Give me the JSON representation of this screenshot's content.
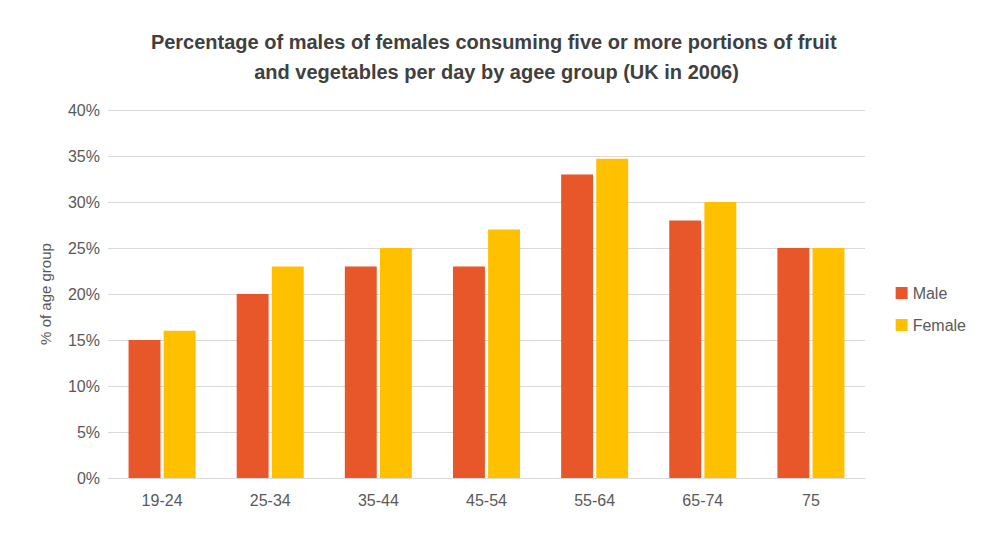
{
  "chart_data": {
    "type": "bar",
    "title": "Percentage of males of females consuming five or more portions of fruit and vegetables per day by agee group (UK in 2006)",
    "y_label": "% of age group",
    "categories": [
      "19-24",
      "25-34",
      "35-44",
      "45-54",
      "55-64",
      "65-74",
      "75"
    ],
    "series": [
      {
        "name": "Male",
        "color": "#e8572a",
        "values": [
          15,
          20,
          23,
          23,
          33,
          28,
          25
        ]
      },
      {
        "name": "Female",
        "color": "#ffc000",
        "values": [
          16,
          23,
          25,
          27,
          34.7,
          30,
          25
        ]
      }
    ],
    "ylim": [
      0,
      40
    ],
    "yticks": [
      {
        "value": 0,
        "label": "0%"
      },
      {
        "value": 5,
        "label": "5%"
      },
      {
        "value": 10,
        "label": "10%"
      },
      {
        "value": 15,
        "label": "15%"
      },
      {
        "value": 20,
        "label": "20%"
      },
      {
        "value": 25,
        "label": "25%"
      },
      {
        "value": 30,
        "label": "30%"
      },
      {
        "value": 35,
        "label": "35%"
      },
      {
        "value": 40,
        "label": "40%"
      }
    ],
    "grid": true,
    "legend": "right"
  }
}
